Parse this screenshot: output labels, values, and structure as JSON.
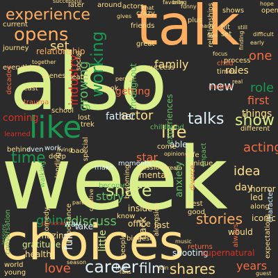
{
  "background": "#2b2b2b",
  "words": [
    {
      "text": "week",
      "color": "#d9ef8b"
    },
    {
      "text": "also",
      "color": "#d9ef8b"
    },
    {
      "text": "choices",
      "color": "#fee08b"
    },
    {
      "text": "talk",
      "color": "#fdae61"
    },
    {
      "text": "like",
      "color": "#1a9850"
    },
    {
      "text": "experience",
      "color": "#fdae61"
    },
    {
      "text": "opens",
      "color": "#fdae61"
    },
    {
      "text": "career",
      "color": "#e0f3f8"
    },
    {
      "text": "working",
      "color": "#1a9850"
    },
    {
      "text": "share",
      "color": "#d9ef8b"
    },
    {
      "text": "life",
      "color": "#fee08b"
    },
    {
      "text": "talks",
      "color": "#e0f3f8"
    },
    {
      "text": "show",
      "color": "#d9ef8b"
    },
    {
      "text": "time",
      "color": "#1a9850"
    },
    {
      "text": "industry",
      "color": "#d73027"
    },
    {
      "text": "growing",
      "color": "#66bd63"
    },
    {
      "text": "film",
      "color": "#e0f3f8"
    },
    {
      "text": "shares",
      "color": "#fee08b"
    },
    {
      "text": "stories",
      "color": "#fdae61"
    },
    {
      "text": "discuss",
      "color": "#66bd63"
    },
    {
      "text": "going",
      "color": "#1a9850"
    },
    {
      "text": "story",
      "color": "#66bd63"
    },
    {
      "text": "years",
      "color": "#f46d43"
    },
    {
      "text": "love",
      "color": "#f46d43"
    },
    {
      "text": "acting",
      "color": "#f46d43"
    },
    {
      "text": "idea",
      "color": "#fee08b"
    },
    {
      "text": "new",
      "color": "#e0f3f8"
    },
    {
      "text": "role",
      "color": "#1a9850"
    },
    {
      "text": "one",
      "color": "#f46d43"
    },
    {
      "text": "set",
      "color": "#fee08b"
    },
    {
      "text": "family",
      "color": "#fee08b"
    },
    {
      "text": "actor",
      "color": "#fee08b"
    },
    {
      "text": "father",
      "color": "#e0f3f8"
    },
    {
      "text": "getting",
      "color": "#f46d43"
    },
    {
      "text": "roles",
      "color": "#fee08b"
    },
    {
      "text": "first",
      "color": "#f46d43"
    },
    {
      "text": "things",
      "color": "#fee08b"
    },
    {
      "text": "anxiety",
      "color": "#66bd63"
    },
    {
      "text": "star",
      "color": "#f46d43"
    },
    {
      "text": "day",
      "color": "#fee08b"
    },
    {
      "text": "coming",
      "color": "#d73027"
    },
    {
      "text": "relationship",
      "color": "#fdae61"
    },
    {
      "text": "throughout",
      "color": "#66bd63"
    },
    {
      "text": "experiences",
      "color": "#66bd63"
    },
    {
      "text": "able",
      "color": "#e0f3f8"
    },
    {
      "text": "way",
      "color": "#e0f3f8"
    },
    {
      "text": "back",
      "color": "#fee08b"
    },
    {
      "text": "would",
      "color": "#fee08b"
    },
    {
      "text": "become",
      "color": "#66bd63"
    },
    {
      "text": "conversation",
      "color": "#66bd63"
    },
    {
      "text": "lessons",
      "color": "#66bd63"
    },
    {
      "text": "personal",
      "color": "#d73027"
    },
    {
      "text": "amazing",
      "color": "#fee08b"
    },
    {
      "text": "gratitude",
      "color": "#d9ef8b"
    },
    {
      "text": "health",
      "color": "#fee08b"
    },
    {
      "text": "world",
      "color": "#fee08b"
    },
    {
      "text": "young",
      "color": "#fee08b"
    },
    {
      "text": "little",
      "color": "#d9ef8b"
    },
    {
      "text": "full",
      "color": "#e0f3f8"
    },
    {
      "text": "shooting",
      "color": "#e0f3f8"
    },
    {
      "text": "supernatural",
      "color": "#d73027"
    },
    {
      "text": "iconic",
      "color": "#fee08b"
    },
    {
      "text": "character",
      "color": "#e0f3f8"
    },
    {
      "text": "horror",
      "color": "#fee08b"
    },
    {
      "text": "led",
      "color": "#fee08b"
    },
    {
      "text": "mental",
      "color": "#fee08b"
    },
    {
      "text": "inside",
      "color": "#fee08b"
    },
    {
      "text": "office",
      "color": "#fee08b"
    },
    {
      "text": "last",
      "color": "#fee08b"
    },
    {
      "text": "take",
      "color": "#e0f3f8"
    },
    {
      "text": "make",
      "color": "#e0f3f8"
    },
    {
      "text": "process",
      "color": "#fee08b"
    },
    {
      "text": "times",
      "color": "#fee08b"
    },
    {
      "text": "child",
      "color": "#f46d43"
    },
    {
      "text": "success",
      "color": "#fee08b"
    },
    {
      "text": "different",
      "color": "#fee08b"
    },
    {
      "text": "cast",
      "color": "#fee08b"
    },
    {
      "text": "everything",
      "color": "#fee08b"
    },
    {
      "text": "decades",
      "color": "#f46d43"
    },
    {
      "text": "trauma",
      "color": "#f46d43"
    },
    {
      "text": "school",
      "color": "#fee08b"
    },
    {
      "text": "lost",
      "color": "#fee08b"
    },
    {
      "text": "trek",
      "color": "#fee08b"
    },
    {
      "text": "learned",
      "color": "#d73027"
    },
    {
      "text": "work",
      "color": "#e0f3f8"
    },
    {
      "text": "deep",
      "color": "#fee08b"
    },
    {
      "text": "behind",
      "color": "#fee08b"
    },
    {
      "text": "even",
      "color": "#e0f3f8"
    },
    {
      "text": "living",
      "color": "#fee08b"
    },
    {
      "text": "bad",
      "color": "#fee08b"
    },
    {
      "text": "landing",
      "color": "#fee08b"
    },
    {
      "text": "walking",
      "color": "#66bd63"
    },
    {
      "text": "comedy",
      "color": "#fee08b"
    },
    {
      "text": "importance",
      "color": "#fee08b"
    },
    {
      "text": "moments",
      "color": "#e0f3f8"
    },
    {
      "text": "passion",
      "color": "#fee08b"
    },
    {
      "text": "wife",
      "color": "#fee08b"
    },
    {
      "text": "unique",
      "color": "#fee08b"
    },
    {
      "text": "impact",
      "color": "#66bd63"
    },
    {
      "text": "divorce",
      "color": "#f46d43"
    },
    {
      "text": "best",
      "color": "#fee08b"
    },
    {
      "text": "good",
      "color": "#fee08b"
    },
    {
      "text": "along",
      "color": "#fee08b"
    },
    {
      "text": "returns",
      "color": "#f46d43"
    },
    {
      "text": "always",
      "color": "#f46d43"
    },
    {
      "text": "people",
      "color": "#fee08b"
    },
    {
      "text": "live",
      "color": "#e0f3f8"
    },
    {
      "text": "fans",
      "color": "#fee08b"
    },
    {
      "text": "join",
      "color": "#fee08b"
    },
    {
      "text": "around",
      "color": "#fee08b"
    },
    {
      "text": "actors",
      "color": "#fee08b"
    },
    {
      "text": "later",
      "color": "#fee08b"
    },
    {
      "text": "crazy",
      "color": "#fee08b"
    },
    {
      "text": "shows",
      "color": "#fee08b"
    },
    {
      "text": "plus",
      "color": "#fee08b"
    },
    {
      "text": "open",
      "color": "#fee08b"
    },
    {
      "text": "hope",
      "color": "#fee08b"
    },
    {
      "text": "hit",
      "color": "#fee08b"
    },
    {
      "text": "set",
      "color": "#fee08b"
    },
    {
      "text": "friends",
      "color": "#fee08b"
    },
    {
      "text": "great",
      "color": "#fee08b"
    },
    {
      "text": "current",
      "color": "#fee08b"
    },
    {
      "text": "journey",
      "color": "#fee08b"
    },
    {
      "text": "scenes",
      "color": "#fee08b"
    },
    {
      "text": "social",
      "color": "#fee08b"
    },
    {
      "text": "book",
      "color": "#fee08b"
    },
    {
      "text": "person",
      "color": "#fee08b"
    },
    {
      "text": "mother",
      "color": "#f46d43"
    },
    {
      "text": "create",
      "color": "#fee08b"
    },
    {
      "text": "childhood",
      "color": "#66bd63"
    },
    {
      "text": "opinion",
      "color": "#fee08b"
    },
    {
      "text": "special",
      "color": "#fee08b"
    },
    {
      "text": "creative",
      "color": "#fee08b"
    },
    {
      "text": "know",
      "color": "#fee08b"
    },
    {
      "text": "alongside",
      "color": "#fee08b"
    },
    {
      "text": "biggest",
      "color": "#fee08b"
    },
    {
      "text": "becoming",
      "color": "#fee08b"
    },
    {
      "text": "dream",
      "color": "#fee08b"
    },
    {
      "text": "successful",
      "color": "#fee08b"
    },
    {
      "text": "relationships",
      "color": "#fee08b"
    },
    {
      "text": "funny",
      "color": "#fee08b"
    },
    {
      "text": "favorite",
      "color": "#fee08b"
    },
    {
      "text": "finding",
      "color": "#fee08b"
    },
    {
      "text": "come",
      "color": "#fee08b"
    },
    {
      "text": "difficult",
      "color": "#fee08b"
    },
    {
      "text": "together",
      "color": "#fee08b"
    },
    {
      "text": "film",
      "color": "#fee08b"
    },
    {
      "text": "gives",
      "color": "#fee08b"
    },
    {
      "text": "harry",
      "color": "#fee08b"
    },
    {
      "text": "parents",
      "color": "#fee08b"
    },
    {
      "text": "bring",
      "color": "#fee08b"
    },
    {
      "text": "focus",
      "color": "#fee08b"
    },
    {
      "text": "music",
      "color": "#fee08b"
    },
    {
      "text": "chat",
      "color": "#fee08b"
    },
    {
      "text": "expectations",
      "color": "#fee08b"
    },
    {
      "text": "early",
      "color": "#fee08b"
    },
    {
      "text": "still",
      "color": "#fee08b"
    },
    {
      "text": "season",
      "color": "#fee08b"
    },
    {
      "text": "guest",
      "color": "#fee08b"
    },
    {
      "text": "real",
      "color": "#fee08b"
    }
  ]
}
